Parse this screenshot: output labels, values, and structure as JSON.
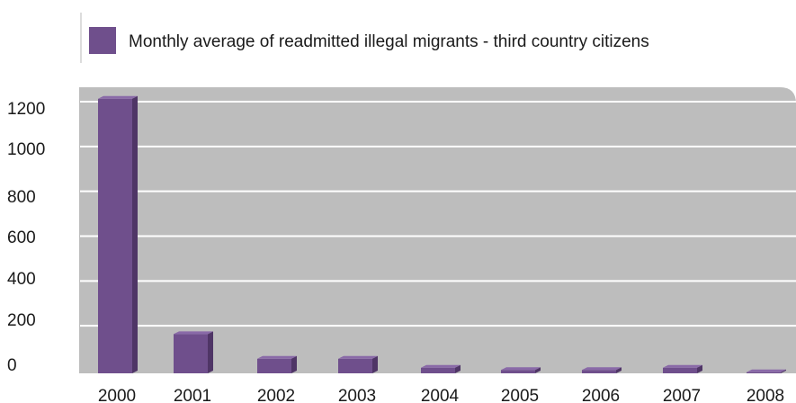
{
  "chart_data": {
    "type": "bar",
    "title": "",
    "xlabel": "",
    "ylabel": "",
    "categories": [
      "2000",
      "2001",
      "2002",
      "2003",
      "2004",
      "2005",
      "2006",
      "2007",
      "2008"
    ],
    "series": [
      {
        "name": "Monthly average of readmitted illegal migrants - third country citizens",
        "values": [
          1225,
          175,
          65,
          65,
          25,
          15,
          15,
          25,
          5
        ]
      }
    ],
    "yticks": [
      "0",
      "200",
      "400",
      "600",
      "800",
      "1000",
      "1200"
    ],
    "ylim": [
      0,
      1200
    ],
    "grid": true,
    "legend_position": "top",
    "colors": {
      "bar_front": "#6f4f8c",
      "bar_side": "#4f3566",
      "bar_top": "#8a6aa8",
      "plot_background": "#bdbdbd",
      "gridline": "#ffffff"
    }
  }
}
